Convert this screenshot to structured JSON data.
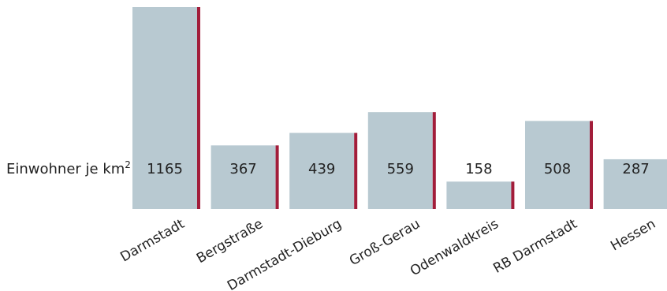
{
  "chart_data": {
    "type": "bar",
    "row_label_text": "Einwohner je km",
    "row_label_superscript": "2",
    "categories": [
      "Darmstadt",
      "Bergstraße",
      "Darmstadt-Dieburg",
      "Groß-Gerau",
      "Odenwaldkreis",
      "RB Darmstadt",
      "Hessen"
    ],
    "values": [
      1165,
      367,
      439,
      559,
      158,
      508,
      287
    ],
    "value_labels": [
      "1165",
      "367",
      "439",
      "559",
      "158",
      "508",
      "287"
    ],
    "accent_flags": [
      true,
      true,
      true,
      true,
      true,
      true,
      false
    ],
    "ylim": [
      0,
      1165
    ],
    "grid": false,
    "legend": "none",
    "colors": {
      "bar": "#b8c9d1",
      "accent": "#a21d3a",
      "text": "#222222"
    }
  }
}
